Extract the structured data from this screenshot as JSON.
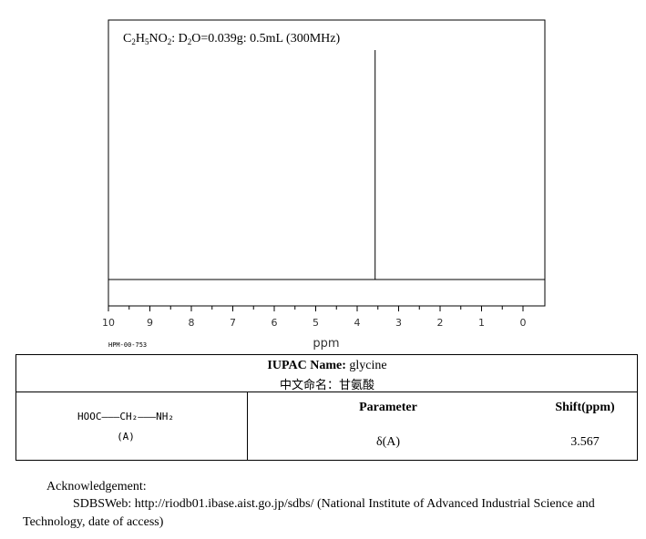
{
  "chart_data": {
    "type": "line",
    "title_parts": {
      "formula": [
        "C",
        "2",
        "H",
        "5",
        "NO",
        "2"
      ],
      "solvent": [
        "D",
        "2",
        "O"
      ],
      "conditions": "=0.039g: 0.5mL (300MHz)"
    },
    "xlabel": "ppm",
    "xlim": [
      10,
      0
    ],
    "x_ticks": [
      "10",
      "9",
      "8",
      "7",
      "6",
      "5",
      "4",
      "3",
      "2",
      "1",
      "0"
    ],
    "peaks": [
      {
        "x": 3.567,
        "y": 1.0
      }
    ],
    "grid": false,
    "catalog_code": "HPM-00-753"
  },
  "info_table": {
    "iupac_label": "IUPAC Name:",
    "iupac_value": " glycine",
    "chinese_name": "中文命名：甘氨酸",
    "structure_main": "HOOC———CH₂———NH₂",
    "structure_label": "(A)",
    "header_parameter": "Parameter",
    "header_shift": "Shift(ppm)",
    "row_param": "δ(A)",
    "row_shift": "3.567"
  },
  "acknowledgement": {
    "heading": "Acknowledgement:",
    "line1": "SDBSWeb: http://riodb01.ibase.aist.go.jp/sdbs/ (National Institute of Advanced Industrial Science and",
    "line2": "Technology, date of access)"
  }
}
